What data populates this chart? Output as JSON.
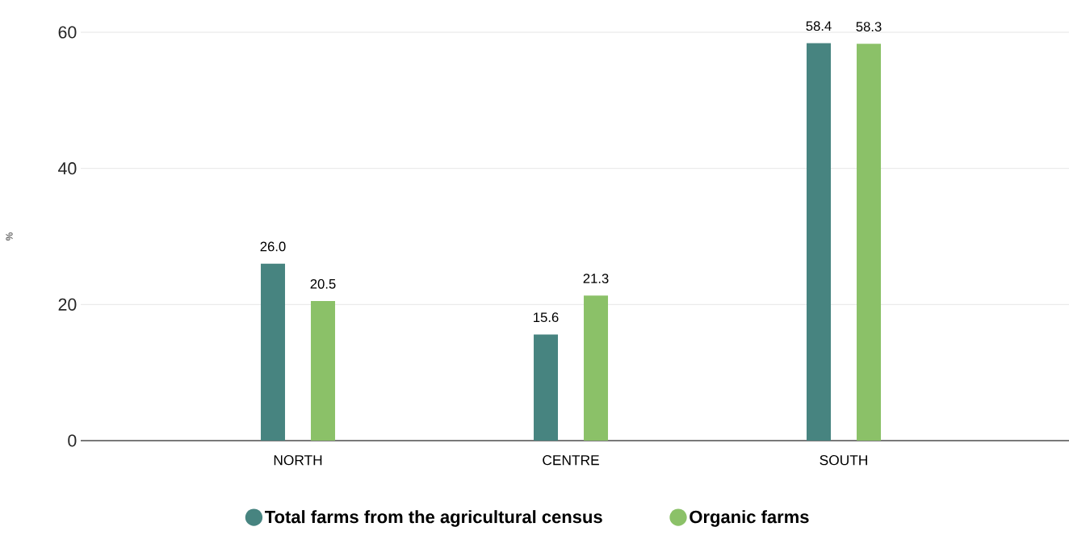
{
  "chart_data": {
    "type": "bar",
    "ylabel": "%",
    "categories": [
      "NORTH",
      "CENTRE",
      "SOUTH"
    ],
    "series": [
      {
        "name": "Total farms from the agricultural census",
        "color": "#478480",
        "values": [
          26.0,
          15.6,
          58.4
        ],
        "value_labels": [
          "26.0",
          "15.6",
          "58.4"
        ]
      },
      {
        "name": "Organic farms",
        "color": "#8bc168",
        "values": [
          20.5,
          21.3,
          58.3
        ],
        "value_labels": [
          "20.5",
          "21.3",
          "58.3"
        ]
      }
    ],
    "ylim": [
      0,
      60
    ],
    "yticks": [
      0,
      20,
      40,
      60
    ],
    "grid": "y",
    "legend": "bottom"
  }
}
